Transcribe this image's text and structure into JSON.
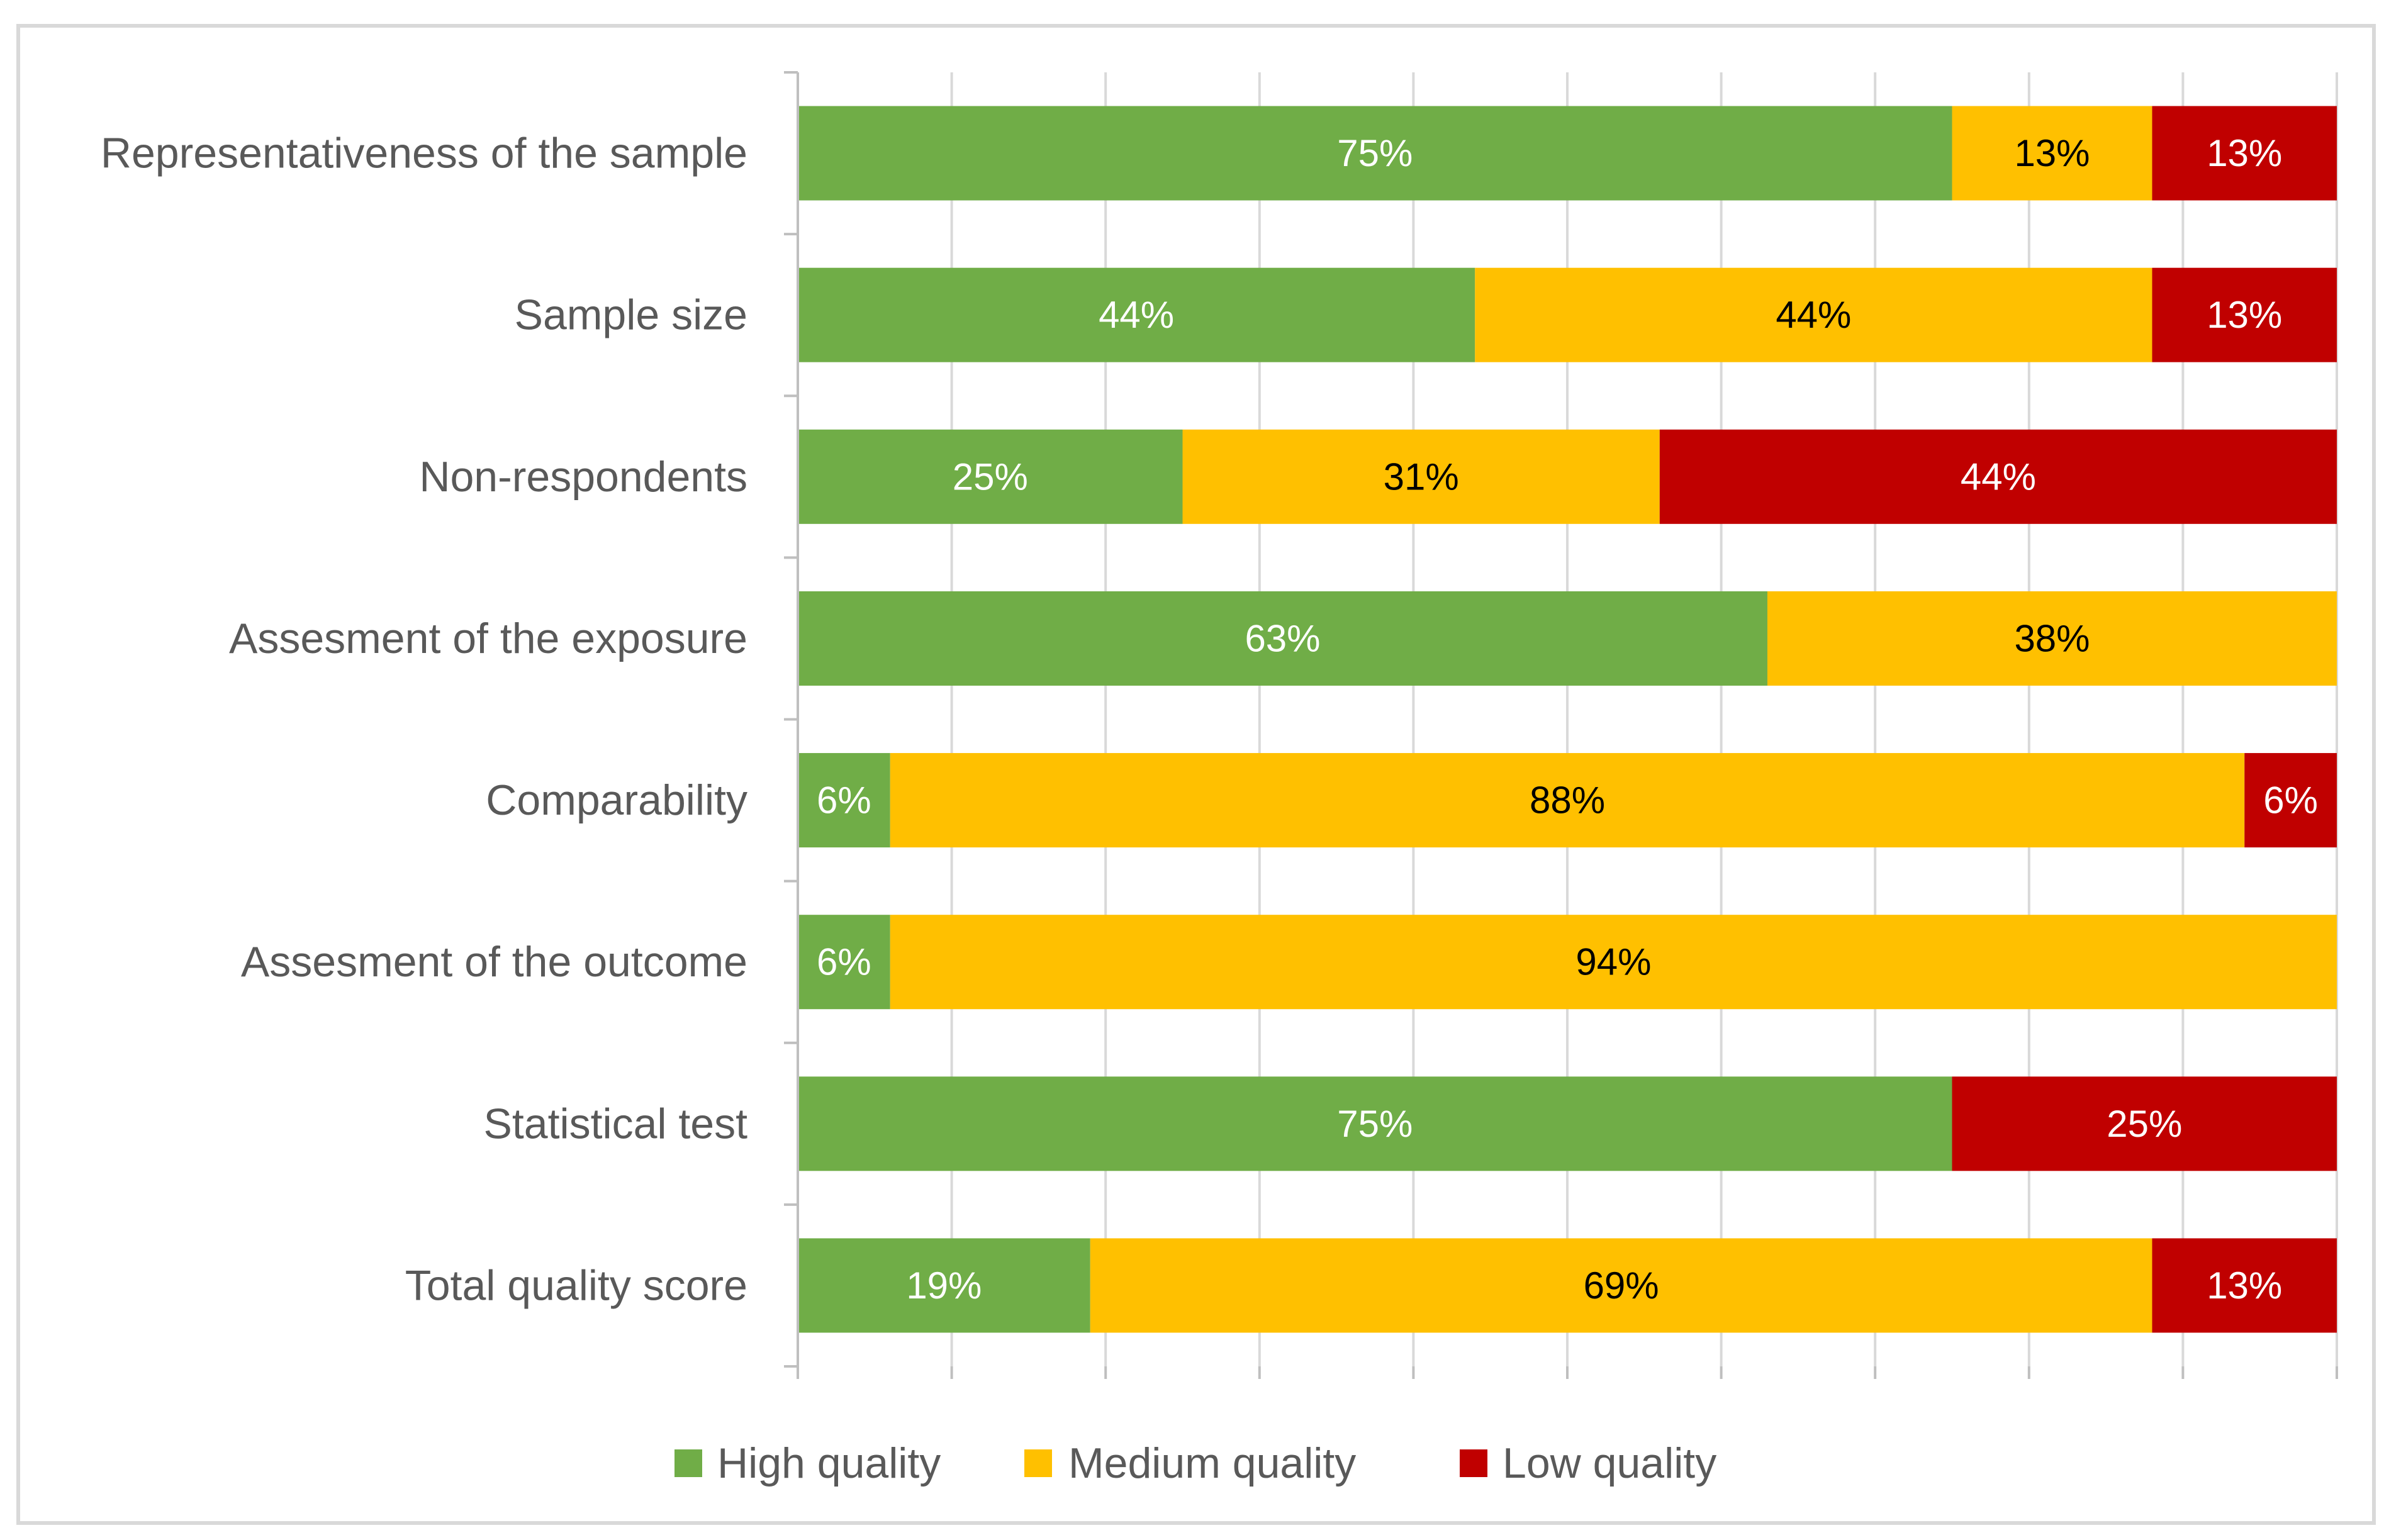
{
  "chart_data": {
    "type": "bar",
    "orientation": "horizontal",
    "stacked": true,
    "title": "",
    "xlabel": "",
    "ylabel": "",
    "xlim": [
      0,
      100
    ],
    "grid": true,
    "legend_position": "bottom",
    "categories": [
      "Representativeness of the sample",
      "Sample size",
      "Non-respondents",
      "Assesment of the exposure ",
      "Comparability",
      "Assesment of the outcome",
      "Statistical test",
      "Total quality score"
    ],
    "series": [
      {
        "name": "High quality",
        "color": "#70ad47",
        "label_color": "#ffffff",
        "values": [
          75,
          44,
          25,
          63,
          6,
          6,
          75,
          19
        ],
        "labels": [
          "75%",
          "44%",
          "25%",
          "63%",
          "6%",
          "6%",
          "75%",
          "19%"
        ]
      },
      {
        "name": "Medium quality",
        "color": "#ffc000",
        "label_color": "#000000",
        "values": [
          13,
          44,
          31,
          38,
          88,
          94,
          0,
          69
        ],
        "labels": [
          "13%",
          "44%",
          "31%",
          "38%",
          "88%",
          "94%",
          "",
          "69%"
        ]
      },
      {
        "name": "Low quality",
        "color": "#c00000",
        "label_color": "#ffffff",
        "values": [
          13,
          13,
          44,
          0,
          6,
          0,
          25,
          13
        ],
        "labels": [
          "13%",
          "13%",
          "44%",
          "",
          "6%",
          "",
          "25%",
          "13%"
        ]
      }
    ]
  }
}
